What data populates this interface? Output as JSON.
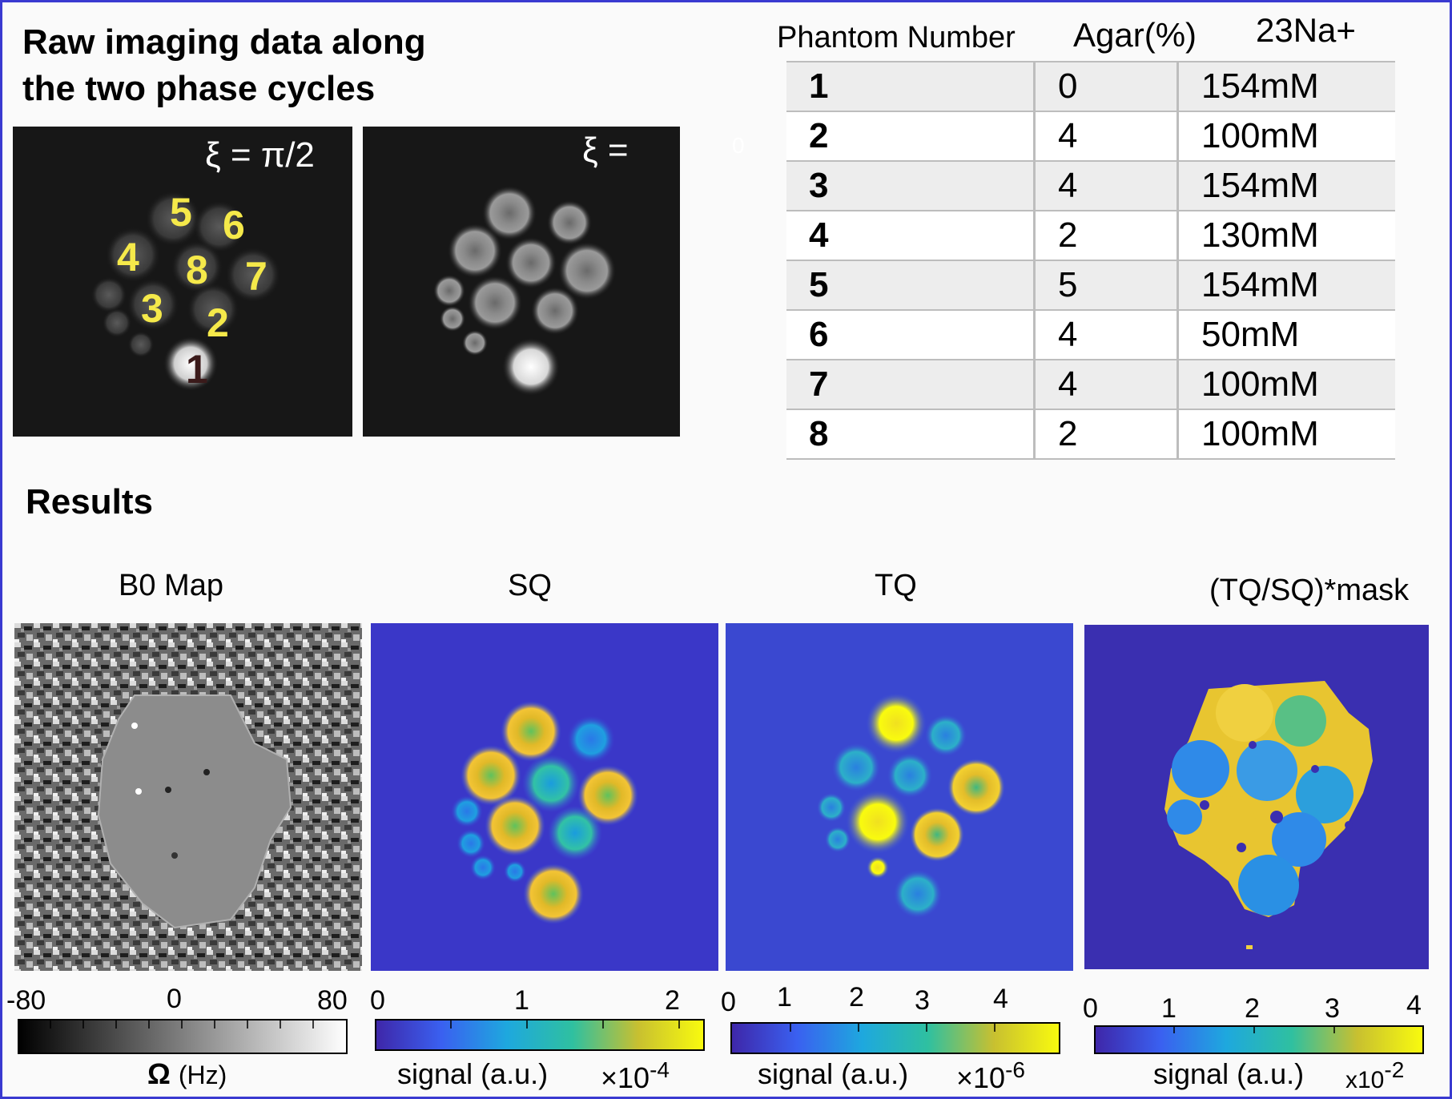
{
  "raw_section": {
    "title_line1": "Raw imaging data along",
    "title_line2": "the two phase cycles",
    "image1_label": "ξ = π/2",
    "image2_label": "ξ =",
    "image2_label_extra": "0",
    "phantom_labels": [
      "5",
      "6",
      "4",
      "8",
      "7",
      "3",
      "2",
      "1"
    ]
  },
  "table": {
    "headers": [
      "Phantom Number",
      "Agar(%)",
      "23Na+"
    ],
    "rows": [
      {
        "number": "1",
        "agar": "0",
        "na": "154mM"
      },
      {
        "number": "2",
        "agar": "4",
        "na": "100mM"
      },
      {
        "number": "3",
        "agar": "4",
        "na": "154mM"
      },
      {
        "number": "4",
        "agar": "2",
        "na": "130mM"
      },
      {
        "number": "5",
        "agar": "5",
        "na": "154mM"
      },
      {
        "number": "6",
        "agar": "4",
        "na": "50mM"
      },
      {
        "number": "7",
        "agar": "4",
        "na": "100mM"
      },
      {
        "number": "8",
        "agar": "2",
        "na": "100mM"
      }
    ]
  },
  "results": {
    "title": "Results",
    "panels": [
      {
        "label": "B0 Map",
        "ticks": [
          "-80",
          "0",
          "80"
        ],
        "axis_label": "Ω",
        "axis_unit": "(Hz)",
        "exponent_base": "",
        "exponent": ""
      },
      {
        "label": "SQ",
        "ticks": [
          "0",
          "1",
          "2"
        ],
        "axis_label": "signal (a.u.)",
        "axis_unit": "",
        "exponent_base": "×10",
        "exponent": "-4"
      },
      {
        "label": "TQ",
        "ticks": [
          "0",
          "1",
          "2",
          "3",
          "4"
        ],
        "axis_label": "signal (a.u.)",
        "axis_unit": "",
        "exponent_base": "×10",
        "exponent": "-6"
      },
      {
        "label": "(TQ/SQ)*mask",
        "ticks": [
          "0",
          "1",
          "2",
          "3",
          "4"
        ],
        "axis_label": "signal (a.u.)",
        "axis_unit": "",
        "exponent_base": "x10",
        "exponent": "-2"
      }
    ]
  },
  "colors": {
    "frame": "#3a3ad0",
    "phantom_label": "#f5e94a",
    "parula_low": "#3e26a8",
    "parula_high": "#f9fb0e"
  }
}
